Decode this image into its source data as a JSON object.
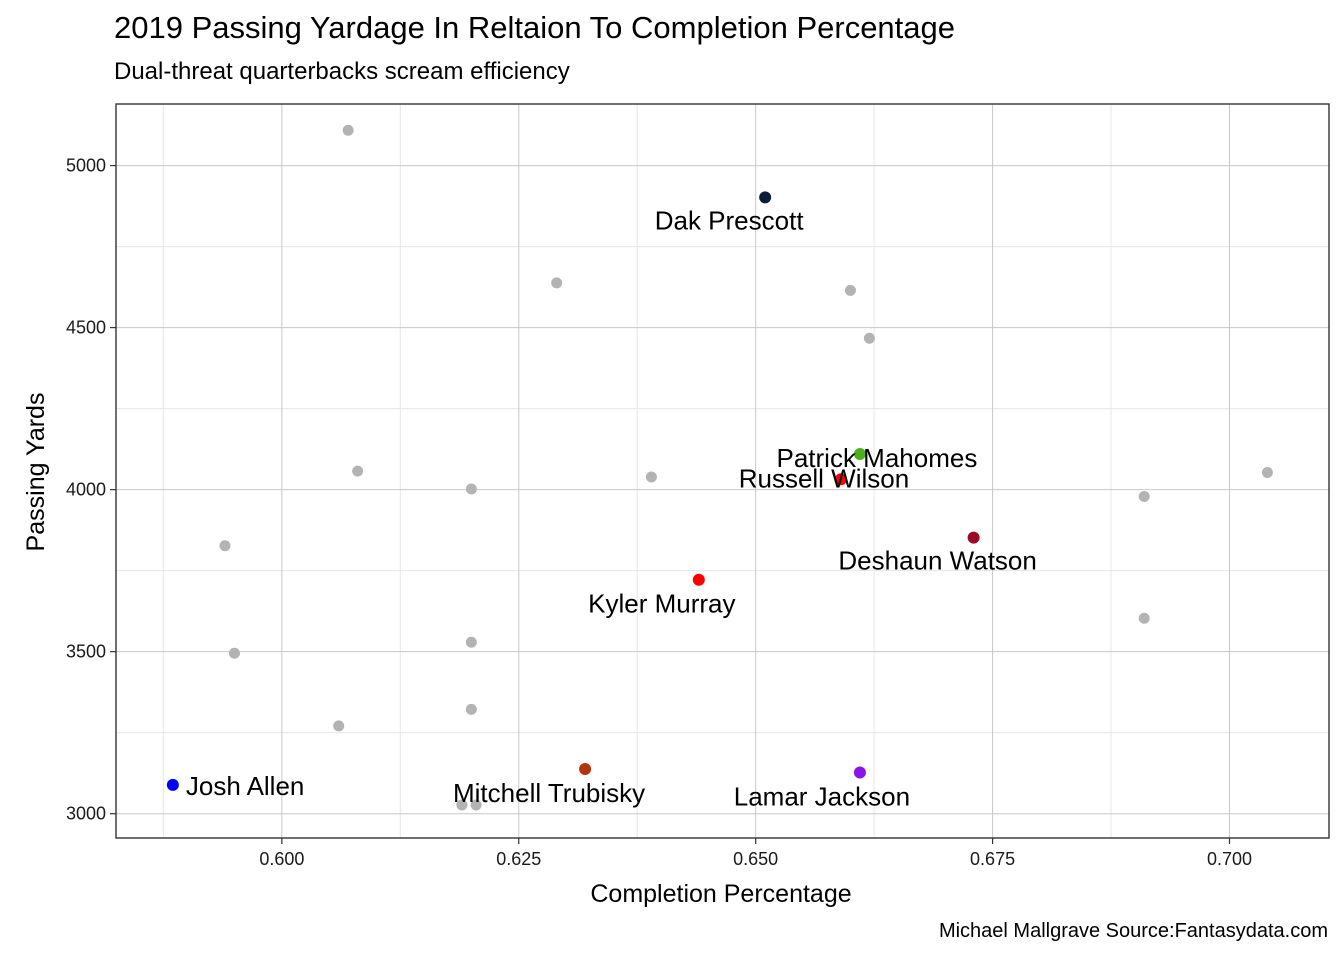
{
  "chart_data": {
    "type": "scatter",
    "title": "2019 Passing Yardage In Reltaion To Completion Percentage",
    "subtitle": "Dual-threat quarterbacks scream efficiency",
    "caption": "Michael Mallgrave Source:Fantasydata.com",
    "xlabel": "Completion Percentage",
    "ylabel": "Passing Yards",
    "xlim": [
      0.5825,
      0.7105
    ],
    "ylim": [
      2925,
      5190
    ],
    "xticks": [
      0.6,
      0.625,
      0.65,
      0.675,
      0.7
    ],
    "xtick_labels": [
      "0.600",
      "0.625",
      "0.650",
      "0.675",
      "0.700"
    ],
    "yticks": [
      3000,
      3500,
      4000,
      4500,
      5000
    ],
    "ytick_labels": [
      "3000",
      "3500",
      "4000",
      "4500",
      "5000"
    ],
    "grid": true,
    "background_points": [
      {
        "x": 0.607,
        "y": 5109
      },
      {
        "x": 0.629,
        "y": 4638
      },
      {
        "x": 0.66,
        "y": 4615
      },
      {
        "x": 0.662,
        "y": 4467
      },
      {
        "x": 0.608,
        "y": 4057
      },
      {
        "x": 0.62,
        "y": 4002
      },
      {
        "x": 0.639,
        "y": 4039
      },
      {
        "x": 0.704,
        "y": 4053
      },
      {
        "x": 0.691,
        "y": 3979
      },
      {
        "x": 0.594,
        "y": 3827
      },
      {
        "x": 0.691,
        "y": 3603
      },
      {
        "x": 0.595,
        "y": 3495
      },
      {
        "x": 0.62,
        "y": 3529
      },
      {
        "x": 0.62,
        "y": 3322
      },
      {
        "x": 0.606,
        "y": 3271
      },
      {
        "x": 0.619,
        "y": 3027
      },
      {
        "x": 0.6205,
        "y": 3027
      }
    ],
    "background_color": "#b3b3b3",
    "highlighted": [
      {
        "name": "Dak Prescott",
        "x": 0.651,
        "y": 4902,
        "color": "#0c1c3a"
      },
      {
        "name": "Patrick Mahomes",
        "x": 0.661,
        "y": 4110,
        "color": "#4daf1e"
      },
      {
        "name": "Russell Wilson",
        "x": 0.659,
        "y": 4032,
        "color": "#ff0000"
      },
      {
        "name": "Deshaun Watson",
        "x": 0.673,
        "y": 3852,
        "color": "#9c0a28"
      },
      {
        "name": "Kyler Murray",
        "x": 0.644,
        "y": 3722,
        "color": "#ff0000"
      },
      {
        "name": "Josh Allen",
        "x": 0.5885,
        "y": 3089,
        "color": "#0000ff"
      },
      {
        "name": "Mitchell Trubisky",
        "x": 0.632,
        "y": 3138,
        "color": "#b5320e"
      },
      {
        "name": "Lamar Jackson",
        "x": 0.661,
        "y": 3127,
        "color": "#8b12e8"
      }
    ]
  }
}
